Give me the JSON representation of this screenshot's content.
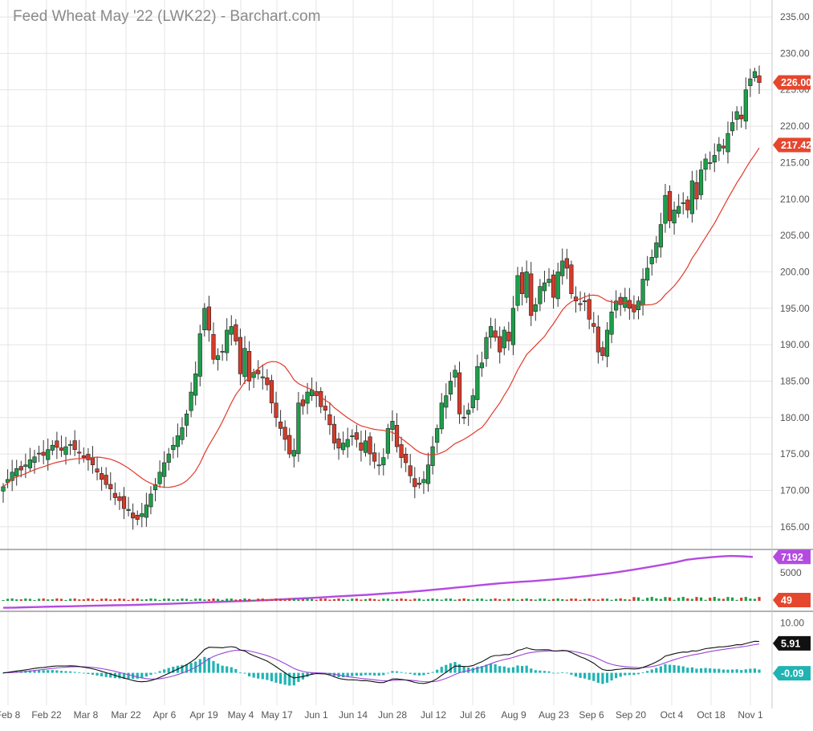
{
  "title": "Feed Wheat May '22 (LWK22) - Barchart.com",
  "colors": {
    "up": "#1e9e4a",
    "down": "#d43b2a",
    "ma": "#e3392b",
    "volume_line": "#b44be1",
    "macd_line": "#111111",
    "signal_line": "#9b44d6",
    "histogram": "#21b3b3",
    "grid": "#e4e4e4",
    "axis_text": "#555555"
  },
  "chart_data": [
    {
      "type": "candlestick",
      "panel": "price",
      "y_ticks": [
        "235.00",
        "230.00",
        "225.00",
        "220.00",
        "215.00",
        "210.00",
        "205.00",
        "200.00",
        "195.00",
        "190.00",
        "185.00",
        "180.00",
        "175.00",
        "170.00",
        "165.00"
      ],
      "ylim": [
        162,
        236
      ],
      "x_ticks": [
        "Feb 8",
        "Feb 22",
        "Mar 8",
        "Mar 22",
        "Apr 6",
        "Apr 19",
        "May 4",
        "May 17",
        "Jun 1",
        "Jun 14",
        "Jun 28",
        "Jul 12",
        "Jul 26",
        "Aug 9",
        "Aug 23",
        "Sep 6",
        "Sep 20",
        "Oct 4",
        "Oct 18",
        "Nov 1"
      ],
      "close": [
        170.5,
        171.5,
        172.5,
        173.0,
        172.8,
        173.5,
        174.2,
        174.6,
        175.0,
        174.8,
        175.6,
        176.2,
        175.9,
        175.5,
        176.0,
        176.3,
        175.6,
        175.2,
        174.5,
        174.2,
        173.5,
        172.5,
        171.5,
        170.8,
        170.2,
        169.0,
        168.6,
        167.5,
        167.4,
        166.2,
        166.0,
        166.8,
        168.0,
        169.5,
        170.8,
        172.5,
        173.8,
        175.0,
        176.2,
        177.5,
        178.6,
        180.5,
        183.5,
        186.0,
        191.5,
        195.0,
        192.0,
        188.0,
        188.5,
        189.0,
        192.0,
        192.5,
        190.5,
        186.0,
        189.5,
        185.0,
        186.2,
        186.0,
        185.6,
        184.5,
        182.0,
        180.0,
        178.5,
        177.0,
        175.0,
        175.5,
        182.0,
        181.6,
        183.5,
        183.8,
        183.0,
        181.5,
        181.0,
        179.0,
        176.5,
        175.8,
        176.5,
        177.0,
        177.5,
        177.0,
        175.5,
        176.8,
        175.0,
        174.0,
        173.5,
        174.5,
        178.5,
        179.5,
        176.0,
        174.5,
        173.8,
        172.0,
        170.5,
        170.8,
        171.5,
        173.5,
        176.0,
        178.5,
        182.0,
        183.0,
        185.0,
        186.5,
        180.5,
        180.0,
        181.0,
        183.0,
        187.0,
        187.5,
        191.0,
        192.5,
        191.0,
        189.0,
        192.0,
        190.5,
        195.0,
        199.5,
        197.0,
        200.0,
        194.0,
        195.5,
        198.0,
        198.5,
        199.0,
        196.5,
        200.0,
        201.5,
        200.5,
        197.0,
        196.0,
        195.5,
        196.0,
        193.5,
        192.5,
        189.0,
        188.5,
        192.0,
        194.5,
        196.0,
        195.5,
        196.5,
        195.0,
        194.5,
        196.0,
        199.0,
        200.5,
        202.0,
        204.0,
        206.5,
        210.5,
        207.0,
        208.5,
        209.0,
        209.5,
        208.5,
        212.5,
        210.0,
        214.0,
        215.5,
        215.0,
        216.0,
        217.5,
        217.0,
        219.0,
        220.5,
        222.0,
        221.0,
        225.0,
        226.5,
        227.5,
        226.0
      ],
      "moving_average": {
        "label": "217.42",
        "value": 217.42
      },
      "last_price": {
        "label": "226.00",
        "value": 226.0
      }
    },
    {
      "type": "line",
      "panel": "volume",
      "series_tag": "7192",
      "y_ticks": [
        "5000"
      ],
      "ylim": [
        0,
        8000
      ],
      "open_interest": [
        150,
        180,
        220,
        260,
        300,
        330,
        360,
        400,
        430,
        470,
        500,
        520,
        560,
        600,
        650,
        700,
        760,
        820,
        880,
        940,
        990,
        1040,
        1090,
        1150,
        1220,
        1300,
        1380,
        1450,
        1520,
        1600,
        1700,
        1780,
        1870,
        1950,
        2050,
        2150,
        2260,
        2380,
        2500,
        2640,
        2780,
        2930,
        3080,
        3240,
        3390,
        3530,
        3640,
        3760,
        3850,
        3970,
        4090,
        4230,
        4390,
        4550,
        4740,
        4920,
        5140,
        5380,
        5630,
        5900,
        6160,
        6460,
        6800,
        6980,
        7120,
        7240,
        7320,
        7280,
        7192
      ],
      "daily_volume_tag": "49"
    },
    {
      "type": "macd",
      "panel": "macd",
      "y_ticks": [
        "10.00"
      ],
      "ylim": [
        -6.5,
        12
      ],
      "macd_tag": "5.91",
      "signal_tag": "-0.09"
    }
  ]
}
